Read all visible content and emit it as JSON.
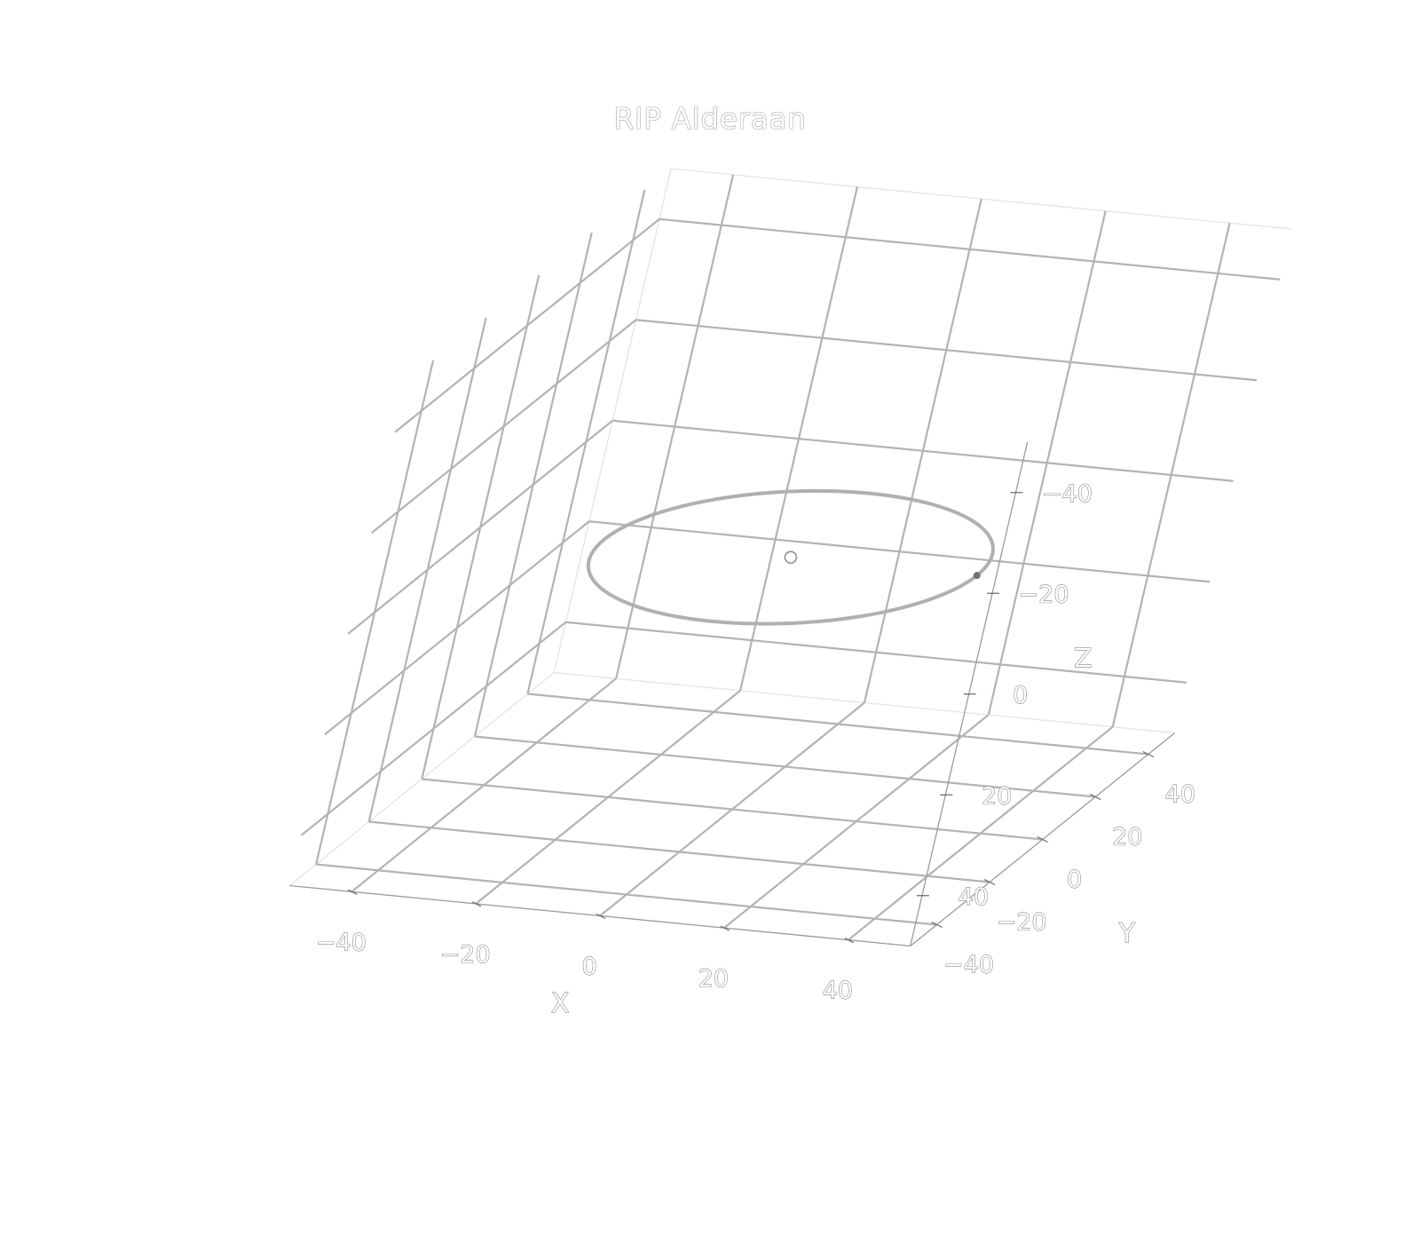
{
  "chart_data": {
    "type": "scatter3d",
    "title": "RIP Alderaan",
    "axes": {
      "x": {
        "label": "X",
        "range": [
          -50,
          50
        ],
        "ticks": [
          -40,
          -20,
          0,
          20,
          40
        ]
      },
      "y": {
        "label": "Y",
        "range": [
          -50,
          50
        ],
        "ticks": [
          -40,
          -20,
          0,
          20,
          40
        ]
      },
      "z": {
        "label": "Z",
        "range": [
          -50,
          50
        ],
        "ticks": [
          -40,
          -20,
          0,
          20,
          40
        ],
        "reversed": true
      }
    },
    "grid": true,
    "series": [
      {
        "kind": "line",
        "shape": "circle",
        "center": [
          0,
          0,
          0
        ],
        "radius": 30,
        "color": "#b0b0b0"
      },
      {
        "kind": "marker",
        "position": [
          0,
          0,
          0
        ],
        "symbol": "circle-open",
        "color": "#888888"
      },
      {
        "kind": "marker",
        "position": [
          30,
          0,
          0
        ],
        "symbol": "circle",
        "color": "#707070"
      }
    ]
  }
}
